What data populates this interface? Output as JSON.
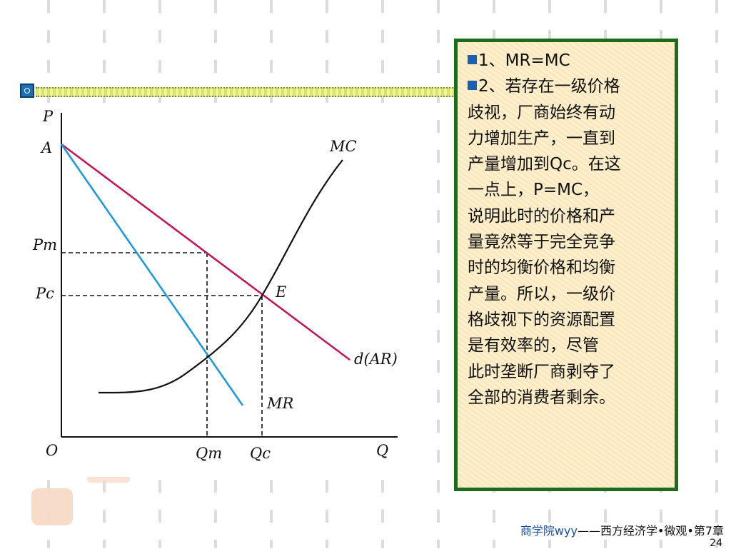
{
  "slide": {
    "footer_school": "商学院wyy",
    "footer_course": "——西方经济学•微观•第7章",
    "page_number": "24"
  },
  "diagram": {
    "axis_price_label": "P",
    "axis_quantity_label": "Q",
    "origin_label": "O",
    "intercept_label": "A",
    "pm_label": "Pm",
    "pc_label": "Pc",
    "qm_label": "Qm",
    "qc_label": "Qc",
    "mc_label": "MC",
    "equilibrium_label": "E",
    "demand_label": "d(AR)",
    "mr_label": "MR",
    "colors": {
      "demand_line": "#c2185b",
      "mr_line": "#1e9be0",
      "mc_curve": "#111111"
    }
  },
  "text_box": {
    "point1": "1、MR=MC",
    "point2_lines": [
      "2、若存在一级价格",
      "歧视，厂商始终有动",
      "力增加生产，一直到",
      "产量增加到Qc。在这",
      "一点上，P=MC，",
      "说明此时的价格和产",
      "量竟然等于完全竞争",
      "时的均衡价格和均衡",
      "产量。所以，一级价",
      "格歧视下的资源配置",
      "是有效率的，尽管",
      "此时垄断厂商剥夺了",
      "全部的消费者剩余。"
    ],
    "colors": {
      "border": "#1e6b1e",
      "bullet": "#1b5fb0"
    }
  }
}
